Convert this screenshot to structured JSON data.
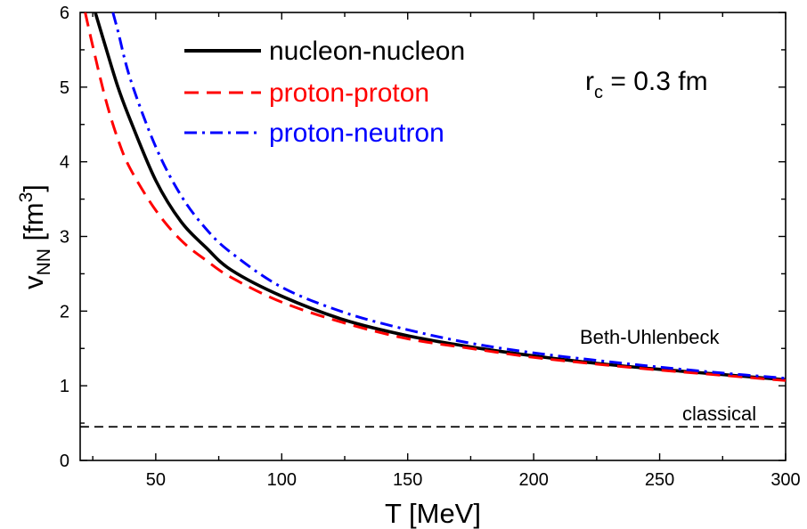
{
  "chart_data": {
    "type": "line",
    "xlabel": {
      "main": "T [MeV]"
    },
    "ylabel": {
      "main": "v",
      "sub": "NN",
      "unit_open": " [fm",
      "sup": "3",
      "unit_close": "]"
    },
    "xlim": [
      20,
      300
    ],
    "ylim": [
      0,
      6
    ],
    "xticks": [
      50,
      100,
      150,
      200,
      250,
      300
    ],
    "xtick_labels": [
      "50",
      "100",
      "150",
      "200",
      "250",
      "300"
    ],
    "yticks": [
      0,
      1,
      2,
      3,
      4,
      5,
      6
    ],
    "ytick_labels": [
      "0",
      "1",
      "2",
      "3",
      "4",
      "5",
      "6"
    ],
    "annotations": {
      "rc": {
        "main": "r",
        "sub": "c",
        "rest": " = 0.3 fm"
      },
      "beth": "Beth-Uhlenbeck",
      "classical": "classical"
    },
    "series": [
      {
        "name": "nucleon-nucleon",
        "color": "#000000",
        "style": "solid",
        "x": [
          26,
          30,
          35,
          40,
          50,
          60,
          70,
          80,
          100,
          125,
          150,
          175,
          200,
          225,
          250,
          275,
          300
        ],
        "y": [
          6.0,
          5.55,
          5.0,
          4.55,
          3.75,
          3.2,
          2.85,
          2.55,
          2.2,
          1.88,
          1.67,
          1.52,
          1.4,
          1.3,
          1.22,
          1.15,
          1.08
        ]
      },
      {
        "name": "proton-proton",
        "color": "#ff0000",
        "style": "dashed",
        "x": [
          22,
          25,
          30,
          35,
          40,
          50,
          60,
          70,
          80,
          100,
          125,
          150,
          175,
          200,
          225,
          250,
          275,
          300
        ],
        "y": [
          6.0,
          5.55,
          4.85,
          4.3,
          3.9,
          3.35,
          2.95,
          2.68,
          2.45,
          2.12,
          1.84,
          1.63,
          1.5,
          1.38,
          1.29,
          1.21,
          1.14,
          1.07
        ]
      },
      {
        "name": "proton-neutron",
        "color": "#0000ff",
        "style": "dashdot",
        "x": [
          33,
          35,
          40,
          50,
          60,
          70,
          80,
          100,
          125,
          150,
          175,
          200,
          225,
          250,
          275,
          300
        ],
        "y": [
          6.0,
          5.75,
          5.1,
          4.2,
          3.55,
          3.1,
          2.78,
          2.32,
          1.98,
          1.75,
          1.57,
          1.44,
          1.34,
          1.25,
          1.17,
          1.1
        ]
      },
      {
        "name": "classical",
        "color": "#000000",
        "style": "dashed-thin",
        "x": [
          20,
          300
        ],
        "y": [
          0.45,
          0.45
        ]
      }
    ],
    "legend": {
      "position": "top-left",
      "entries": [
        "nucleon-nucleon",
        "proton-proton",
        "proton-neutron"
      ]
    }
  }
}
